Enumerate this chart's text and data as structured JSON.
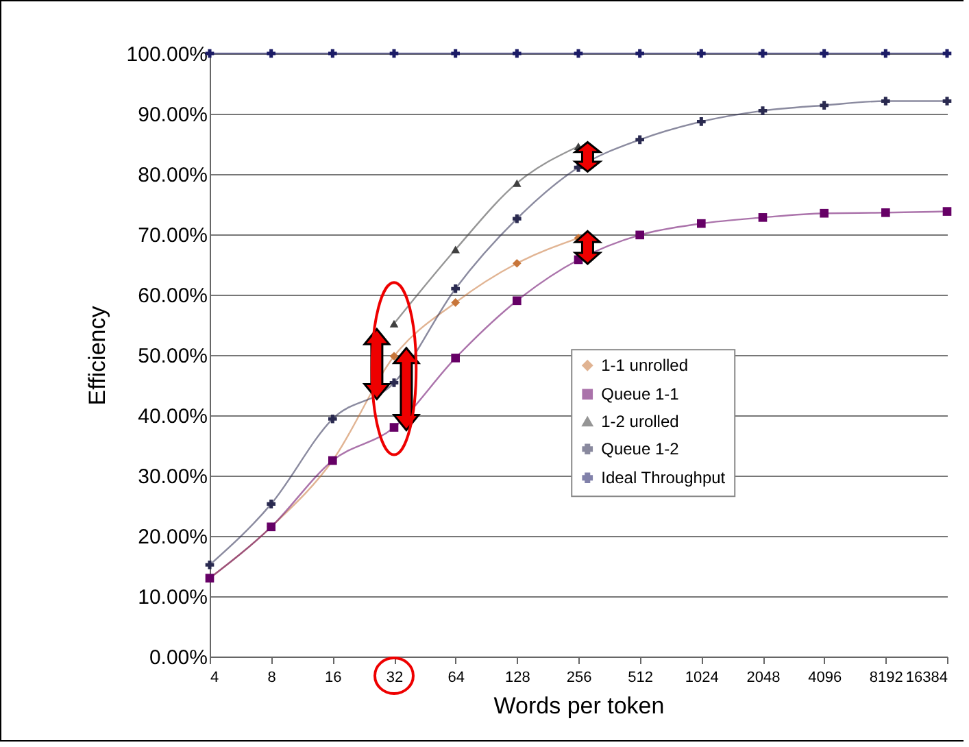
{
  "chart_data": {
    "type": "line",
    "xlabel": "Words per token",
    "ylabel": "Efficiency",
    "categories": [
      "4",
      "8",
      "16",
      "32",
      "64",
      "128",
      "256",
      "512",
      "1024",
      "2048",
      "4096",
      "8192",
      "16384"
    ],
    "ylim": [
      0,
      100
    ],
    "yticks": [
      {
        "value": 0,
        "label": "0.00%"
      },
      {
        "value": 10,
        "label": "10.00%"
      },
      {
        "value": 20,
        "label": "20.00%"
      },
      {
        "value": 30,
        "label": "30.00%"
      },
      {
        "value": 40,
        "label": "40.00%"
      },
      {
        "value": 50,
        "label": "50.00%"
      },
      {
        "value": 60,
        "label": "60.00%"
      },
      {
        "value": 70,
        "label": "70.00%"
      },
      {
        "value": 80,
        "label": "80.00%"
      },
      {
        "value": 90,
        "label": "90.00%"
      },
      {
        "value": 100,
        "label": "100.00%"
      }
    ],
    "grid": "y",
    "legend": "center",
    "series": [
      {
        "name": "1-1 unrolled",
        "color": "#c8763a",
        "marker": "diamond",
        "values": [
          13,
          21.5,
          32.5,
          49.8,
          58.7,
          65.2,
          69.4,
          null,
          null,
          null,
          null,
          null,
          null
        ]
      },
      {
        "name": "Queue 1-1",
        "color": "#660066",
        "marker": "square",
        "values": [
          13,
          21.5,
          32.5,
          38,
          49.5,
          59,
          65.8,
          69.9,
          71.8,
          72.8,
          73.5,
          73.6,
          73.8
        ]
      },
      {
        "name": "1-2 urolled",
        "color": "#404040",
        "marker": "triangle",
        "values": [
          null,
          null,
          null,
          55.2,
          67.5,
          78.5,
          84.6,
          null,
          null,
          null,
          null,
          null,
          null
        ]
      },
      {
        "name": "Queue 1-2",
        "color": "#2a2a50",
        "marker": "cross",
        "values": [
          15.2,
          25.3,
          39.4,
          45.4,
          61,
          72.6,
          81.1,
          85.7,
          88.7,
          90.5,
          91.4,
          92.1,
          92.1
        ]
      },
      {
        "name": "Ideal Throughput",
        "color": "#1c1c66",
        "marker": "cross",
        "values": [
          100,
          100,
          100,
          100,
          100,
          100,
          100,
          100,
          100,
          100,
          100,
          100,
          100
        ]
      }
    ]
  }
}
